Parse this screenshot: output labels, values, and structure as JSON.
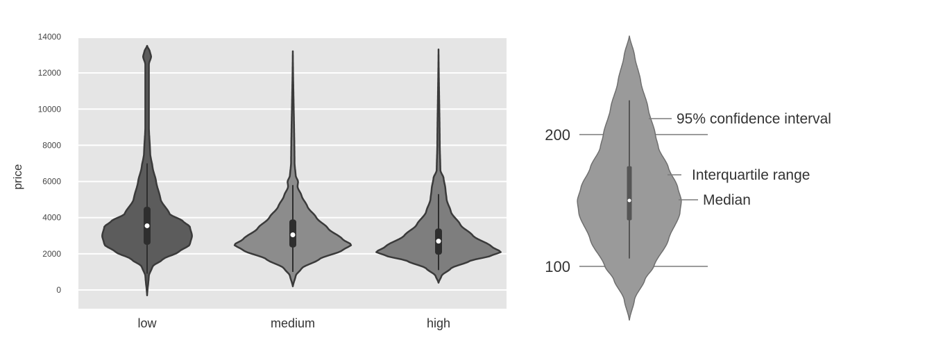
{
  "chart_data": [
    {
      "type": "violin",
      "title": "",
      "xlabel": "",
      "ylabel": "price",
      "ylim": [
        -500,
        14000
      ],
      "yticks": [
        "0",
        "2000",
        "4000",
        "6000",
        "8000",
        "10000",
        "12000",
        "14000"
      ],
      "ytick_values": [
        0,
        2000,
        4000,
        6000,
        8000,
        10000,
        12000,
        14000
      ],
      "grid": true,
      "categories": [
        "low",
        "medium",
        "high"
      ],
      "colors": {
        "background": "#e5e5e5",
        "grid": "#ffffff",
        "outline": "#3a3a3a",
        "low": "#5c5c5c",
        "medium": "#8c8c8c",
        "high": "#7e7e7e",
        "median_dot": "#ffffff",
        "box": "#2e2e2e"
      },
      "series": [
        {
          "category": "low",
          "min": -300,
          "max": 13500,
          "q1": 2500,
          "median": 3550,
          "q3": 4600,
          "whisker_low": 900,
          "whisker_high": 7000,
          "max_density": 0.72,
          "profile": [
            [
              -300,
              0
            ],
            [
              800,
              0.04
            ],
            [
              1300,
              0.12
            ],
            [
              1700,
              0.35
            ],
            [
              2100,
              0.7
            ],
            [
              2500,
              0.95
            ],
            [
              3000,
              1
            ],
            [
              3500,
              0.95
            ],
            [
              3800,
              0.8
            ],
            [
              4200,
              0.5
            ],
            [
              5000,
              0.3
            ],
            [
              6000,
              0.2
            ],
            [
              6800,
              0.12
            ],
            [
              7500,
              0.07
            ],
            [
              9000,
              0.04
            ],
            [
              12500,
              0.04
            ],
            [
              12900,
              0.09
            ],
            [
              13200,
              0.06
            ],
            [
              13500,
              0
            ]
          ]
        },
        {
          "category": "medium",
          "min": 200,
          "max": 13200,
          "q1": 2350,
          "median": 3050,
          "q3": 3900,
          "whisker_low": 1000,
          "whisker_high": 5800,
          "max_density": 0.94,
          "profile": [
            [
              200,
              0
            ],
            [
              800,
              0.05
            ],
            [
              1200,
              0.15
            ],
            [
              1700,
              0.45
            ],
            [
              2200,
              0.85
            ],
            [
              2500,
              1
            ],
            [
              2800,
              0.85
            ],
            [
              3400,
              0.6
            ],
            [
              4000,
              0.4
            ],
            [
              4600,
              0.25
            ],
            [
              5200,
              0.15
            ],
            [
              5700,
              0.08
            ],
            [
              6000,
              0.09
            ],
            [
              6300,
              0.05
            ],
            [
              7000,
              0.03
            ],
            [
              13200,
              0
            ]
          ]
        },
        {
          "category": "high",
          "min": 400,
          "max": 13300,
          "q1": 1950,
          "median": 2700,
          "q3": 3400,
          "whisker_low": 1100,
          "whisker_high": 5300,
          "max_density": 1.0,
          "profile": [
            [
              400,
              0
            ],
            [
              800,
              0.05
            ],
            [
              1200,
              0.2
            ],
            [
              1600,
              0.5
            ],
            [
              1900,
              0.85
            ],
            [
              2100,
              1
            ],
            [
              2400,
              0.85
            ],
            [
              3000,
              0.55
            ],
            [
              3600,
              0.35
            ],
            [
              4300,
              0.2
            ],
            [
              5000,
              0.13
            ],
            [
              5600,
              0.11
            ],
            [
              6200,
              0.08
            ],
            [
              6600,
              0.03
            ],
            [
              8000,
              0.02
            ],
            [
              13300,
              0
            ]
          ]
        }
      ]
    },
    {
      "type": "violin-diagram",
      "yticks": [
        "100",
        "200"
      ],
      "ytick_values": [
        100,
        200
      ],
      "colors": {
        "fill": "#9a9a9a",
        "outline": "#6e6e6e",
        "box": "#555555",
        "median_dot": "#ffffff",
        "line": "#7a7a7a"
      },
      "min": 59,
      "max": 275,
      "q1": 135,
      "median": 150,
      "q3": 176,
      "whisker_low": 106,
      "whisker_high": 226,
      "profile": [
        [
          59,
          0
        ],
        [
          75,
          0.1
        ],
        [
          90,
          0.3
        ],
        [
          100,
          0.47
        ],
        [
          120,
          0.75
        ],
        [
          140,
          0.97
        ],
        [
          150,
          1
        ],
        [
          160,
          0.93
        ],
        [
          175,
          0.75
        ],
        [
          190,
          0.56
        ],
        [
          200,
          0.5
        ],
        [
          220,
          0.36
        ],
        [
          240,
          0.22
        ],
        [
          260,
          0.1
        ],
        [
          275,
          0
        ]
      ],
      "annotations": {
        "ci": "95% confidence interval",
        "iqr": "Interquartile range",
        "median": "Median"
      }
    }
  ]
}
